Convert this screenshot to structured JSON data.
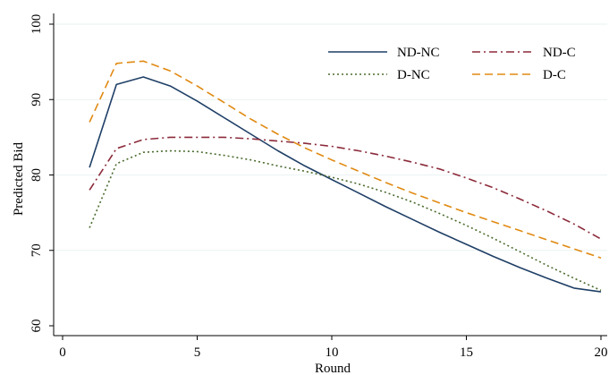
{
  "chart_data": {
    "type": "line",
    "xlabel": "Round",
    "ylabel": "Predicted Bid",
    "xlim": [
      0,
      20
    ],
    "ylim": [
      60,
      100
    ],
    "xticks": [
      0,
      5,
      10,
      15,
      20
    ],
    "yticks": [
      60,
      70,
      80,
      90,
      100
    ],
    "x": [
      1,
      2,
      3,
      4,
      5,
      6,
      7,
      8,
      9,
      10,
      11,
      12,
      13,
      14,
      15,
      16,
      17,
      18,
      19,
      20
    ],
    "grid": "horizontal",
    "legend_position": "top-right",
    "series": [
      {
        "name": "ND-NC",
        "color": "#1f3f66",
        "dash": "solid",
        "values": [
          81.0,
          92.0,
          93.0,
          91.8,
          89.8,
          87.6,
          85.4,
          83.2,
          81.2,
          79.4,
          77.6,
          75.8,
          74.1,
          72.4,
          70.8,
          69.2,
          67.7,
          66.3,
          65.0,
          64.5
        ]
      },
      {
        "name": "ND-C",
        "color": "#8b2a3a",
        "dash": "dashdot",
        "values": [
          78.0,
          83.5,
          84.7,
          85.0,
          85.0,
          85.0,
          84.8,
          84.5,
          84.2,
          83.8,
          83.2,
          82.5,
          81.7,
          80.8,
          79.6,
          78.3,
          76.8,
          75.2,
          73.5,
          71.5
        ]
      },
      {
        "name": "D-NC",
        "color": "#4a6b2e",
        "dash": "dotted",
        "values": [
          73.0,
          81.5,
          83.0,
          83.2,
          83.1,
          82.6,
          82.0,
          81.2,
          80.5,
          79.7,
          78.8,
          77.7,
          76.4,
          74.9,
          73.3,
          71.6,
          69.8,
          68.0,
          66.3,
          64.7
        ]
      },
      {
        "name": "D-C",
        "color": "#e08a12",
        "dash": "dashed",
        "values": [
          87.0,
          94.8,
          95.1,
          93.8,
          91.8,
          89.6,
          87.4,
          85.4,
          83.6,
          82.0,
          80.5,
          79.0,
          77.6,
          76.3,
          75.0,
          73.8,
          72.6,
          71.4,
          70.2,
          69.0
        ]
      }
    ]
  }
}
